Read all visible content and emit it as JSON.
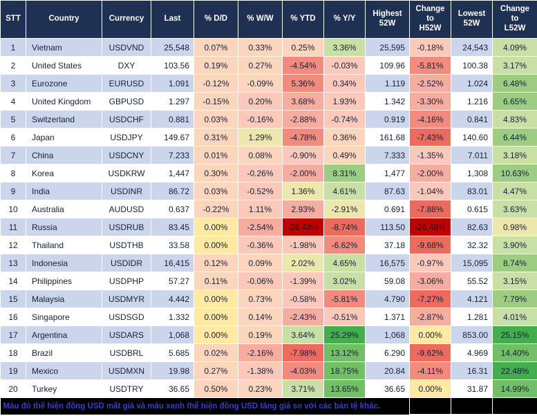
{
  "footer": {
    "note": "Màu đỏ thể hiện đồng USD mất giá và màu xanh thể hiện đồng USD tăng giá so với các bản tệ khác."
  },
  "colors": {
    "header_bg": "#1F3152",
    "row_alt_bg": "#CBD5EB",
    "row_bg": "#FFFFFF",
    "grid": "#FFFFFF",
    "footer_bg": "#000000",
    "note_text": "#3C3CCB",
    "scale_strong_red": "#C00000",
    "scale_med_red": "#EC6A5E",
    "scale_light_red": "#F7ACA0",
    "scale_pale_red": "#FAC9BA",
    "scale_neutral_cream": "#FFE9A3",
    "scale_pale_green": "#C8E0A5",
    "scale_med_green": "#72BF68",
    "scale_strong_green": "#44AE4E"
  },
  "chart_data": {
    "type": "table",
    "title": "FX rates vs USD — daily, weekly, YTD, yearly changes and 52-week ranges",
    "columns": [
      "STT",
      "Country",
      "Currency",
      "Last",
      "% D/D",
      "% W/W",
      "% YTD",
      "% Y/Y",
      "Highest\n52W",
      "Change\nto\nH52W",
      "Lowest\n52W",
      "Change\nto\nL52W"
    ],
    "rows": [
      {
        "stt": "1",
        "country": "Vietnam",
        "ccy": "USDVND",
        "last": "25,548",
        "dd": {
          "v": "0.07%",
          "c": "#FBD6BC"
        },
        "ww": {
          "v": "0.33%",
          "c": "#FBD6BC"
        },
        "ytd": {
          "v": "0.25%",
          "c": "#FBD6BC"
        },
        "yy": {
          "v": "3.36%",
          "c": "#C8E0A5"
        },
        "high": "25,595",
        "chgh": {
          "v": "-0.18%",
          "c": "#FAC9BA"
        },
        "low": "24,543",
        "chgl": {
          "v": "4.09%",
          "c": "#C8E0A5"
        }
      },
      {
        "stt": "2",
        "country": "United States",
        "ccy": "DXY",
        "last": "103.56",
        "dd": {
          "v": "0.19%",
          "c": "#FBD6BC"
        },
        "ww": {
          "v": "0.27%",
          "c": "#FBD6BC"
        },
        "ytd": {
          "v": "-4.54%",
          "c": "#F28A7E"
        },
        "yy": {
          "v": "-0.03%",
          "c": "#FAC9BA"
        },
        "high": "109.96",
        "chgh": {
          "v": "-5.81%",
          "c": "#F28A7E"
        },
        "low": "100.38",
        "chgl": {
          "v": "3.17%",
          "c": "#C8E0A5"
        }
      },
      {
        "stt": "3",
        "country": "Eurozone",
        "ccy": "EURUSD",
        "last": "1.091",
        "dd": {
          "v": "-0.12%",
          "c": "#FBD6BC"
        },
        "ww": {
          "v": "-0.09%",
          "c": "#FBD6BC"
        },
        "ytd": {
          "v": "5.36%",
          "c": "#F28A7E"
        },
        "yy": {
          "v": "0.34%",
          "c": "#FAC9BA"
        },
        "high": "1.119",
        "chgh": {
          "v": "-2.52%",
          "c": "#F7ACA0"
        },
        "low": "1.024",
        "chgl": {
          "v": "6.48%",
          "c": "#9CCD82"
        }
      },
      {
        "stt": "4",
        "country": "United Kingdom",
        "ccy": "GBPUSD",
        "last": "1.297",
        "dd": {
          "v": "-0.15%",
          "c": "#FBD6BC"
        },
        "ww": {
          "v": "0.20%",
          "c": "#FAC9BA"
        },
        "ytd": {
          "v": "3.68%",
          "c": "#F7ACA0"
        },
        "yy": {
          "v": "1.93%",
          "c": "#FAC9BA"
        },
        "high": "1.342",
        "chgh": {
          "v": "-3.30%",
          "c": "#F7ACA0"
        },
        "low": "1.216",
        "chgl": {
          "v": "6.65%",
          "c": "#9CCD82"
        }
      },
      {
        "stt": "5",
        "country": "Switzerland",
        "ccy": "USDCHF",
        "last": "0.881",
        "dd": {
          "v": "0.03%",
          "c": "#FBD6BC"
        },
        "ww": {
          "v": "-0.16%",
          "c": "#FAC9BA"
        },
        "ytd": {
          "v": "-2.88%",
          "c": "#F7ACA0"
        },
        "yy": {
          "v": "-0.74%",
          "c": "#FAC9BA"
        },
        "high": "0.919",
        "chgh": {
          "v": "-4.16%",
          "c": "#F28A7E"
        },
        "low": "0.841",
        "chgl": {
          "v": "4.83%",
          "c": "#C8E0A5"
        }
      },
      {
        "stt": "6",
        "country": "Japan",
        "ccy": "USDJPY",
        "last": "149.67",
        "dd": {
          "v": "0.31%",
          "c": "#FBD6BC"
        },
        "ww": {
          "v": "1.29%",
          "c": "#EEE7AC"
        },
        "ytd": {
          "v": "-4.78%",
          "c": "#F28A7E"
        },
        "yy": {
          "v": "0.36%",
          "c": "#FBD6BC"
        },
        "high": "161.68",
        "chgh": {
          "v": "-7.43%",
          "c": "#EC6A5E"
        },
        "low": "140.60",
        "chgl": {
          "v": "6.44%",
          "c": "#9CCD82"
        }
      },
      {
        "stt": "7",
        "country": "China",
        "ccy": "USDCNY",
        "last": "7.233",
        "dd": {
          "v": "0.01%",
          "c": "#FBD6BC"
        },
        "ww": {
          "v": "0.08%",
          "c": "#FBD6BC"
        },
        "ytd": {
          "v": "-0.90%",
          "c": "#FAC9BA"
        },
        "yy": {
          "v": "0.49%",
          "c": "#FBD6BC"
        },
        "high": "7.333",
        "chgh": {
          "v": "-1.35%",
          "c": "#FAC9BA"
        },
        "low": "7.011",
        "chgl": {
          "v": "3.18%",
          "c": "#C8E0A5"
        }
      },
      {
        "stt": "8",
        "country": "Korea",
        "ccy": "USDKRW",
        "last": "1,447",
        "dd": {
          "v": "0.30%",
          "c": "#FBD6BC"
        },
        "ww": {
          "v": "-0.26%",
          "c": "#FAC9BA"
        },
        "ytd": {
          "v": "-2.00%",
          "c": "#F7ACA0"
        },
        "yy": {
          "v": "8.31%",
          "c": "#9CCD82"
        },
        "high": "1,477",
        "chgh": {
          "v": "-2.00%",
          "c": "#F7ACA0"
        },
        "low": "1,308",
        "chgl": {
          "v": "10.63%",
          "c": "#9CCD82"
        }
      },
      {
        "stt": "9",
        "country": "India",
        "ccy": "USDINR",
        "last": "86.72",
        "dd": {
          "v": "0.03%",
          "c": "#FBD6BC"
        },
        "ww": {
          "v": "-0.52%",
          "c": "#FAC9BA"
        },
        "ytd": {
          "v": "1.36%",
          "c": "#EEE7AC"
        },
        "yy": {
          "v": "4.61%",
          "c": "#C8E0A5"
        },
        "high": "87.63",
        "chgh": {
          "v": "-1.04%",
          "c": "#FAC9BA"
        },
        "low": "83.01",
        "chgl": {
          "v": "4.47%",
          "c": "#C8E0A5"
        }
      },
      {
        "stt": "10",
        "country": "Australia",
        "ccy": "AUDUSD",
        "last": "0.637",
        "dd": {
          "v": "-0.22%",
          "c": "#FBD6BC"
        },
        "ww": {
          "v": "1.11%",
          "c": "#FAC9BA"
        },
        "ytd": {
          "v": "2.93%",
          "c": "#F7ACA0"
        },
        "yy": {
          "v": "-2.91%",
          "c": "#EEE7AC"
        },
        "high": "0.691",
        "chgh": {
          "v": "-7.88%",
          "c": "#EC6A5E"
        },
        "low": "0.615",
        "chgl": {
          "v": "3.63%",
          "c": "#C8E0A5"
        }
      },
      {
        "stt": "11",
        "country": "Russia",
        "ccy": "USDRUB",
        "last": "83.45",
        "dd": {
          "v": "0.00%",
          "c": "#FFE9A3"
        },
        "ww": {
          "v": "-2.54%",
          "c": "#F7ACA0"
        },
        "ytd": {
          "v": "-26.48%",
          "c": "#C00000",
          "f": "#2B0000"
        },
        "yy": {
          "v": "-8.74%",
          "c": "#EC6A5E"
        },
        "high": "113.50",
        "chgh": {
          "v": "-26.48%",
          "c": "#C00000",
          "f": "#2B0000"
        },
        "low": "82.63",
        "chgl": {
          "v": "0.98%",
          "c": "#EEE7AC"
        }
      },
      {
        "stt": "12",
        "country": "Thailand",
        "ccy": "USDTHB",
        "last": "33.58",
        "dd": {
          "v": "0.00%",
          "c": "#FFE9A3"
        },
        "ww": {
          "v": "-0.36%",
          "c": "#FAC9BA"
        },
        "ytd": {
          "v": "-1.98%",
          "c": "#FAC9BA"
        },
        "yy": {
          "v": "-6.62%",
          "c": "#F28A7E"
        },
        "high": "37.18",
        "chgh": {
          "v": "-9.68%",
          "c": "#EC6A5E"
        },
        "low": "32.32",
        "chgl": {
          "v": "3.90%",
          "c": "#C8E0A5"
        }
      },
      {
        "stt": "13",
        "country": "Indonesia",
        "ccy": "USDIDR",
        "last": "16,415",
        "dd": {
          "v": "0.12%",
          "c": "#FBD6BC"
        },
        "ww": {
          "v": "0.09%",
          "c": "#FBD6BC"
        },
        "ytd": {
          "v": "2.02%",
          "c": "#EEE7AC"
        },
        "yy": {
          "v": "4.65%",
          "c": "#C8E0A5"
        },
        "high": "16,575",
        "chgh": {
          "v": "-0.97%",
          "c": "#FAC9BA"
        },
        "low": "15,095",
        "chgl": {
          "v": "8.74%",
          "c": "#9CCD82"
        }
      },
      {
        "stt": "14",
        "country": "Philippines",
        "ccy": "USDPHP",
        "last": "57.27",
        "dd": {
          "v": "0.11%",
          "c": "#FBD6BC"
        },
        "ww": {
          "v": "-0.06%",
          "c": "#FAC9BA"
        },
        "ytd": {
          "v": "-1.39%",
          "c": "#FAC9BA"
        },
        "yy": {
          "v": "3.02%",
          "c": "#C8E0A5"
        },
        "high": "59.08",
        "chgh": {
          "v": "-3.06%",
          "c": "#F7ACA0"
        },
        "low": "55.52",
        "chgl": {
          "v": "3.15%",
          "c": "#C8E0A5"
        }
      },
      {
        "stt": "15",
        "country": "Malaysia",
        "ccy": "USDMYR",
        "last": "4.442",
        "dd": {
          "v": "0.00%",
          "c": "#FFE9A3"
        },
        "ww": {
          "v": "0.73%",
          "c": "#FBD6BC"
        },
        "ytd": {
          "v": "-0.58%",
          "c": "#FAC9BA"
        },
        "yy": {
          "v": "-5.81%",
          "c": "#F28A7E"
        },
        "high": "4.790",
        "chgh": {
          "v": "-7.27%",
          "c": "#EC6A5E"
        },
        "low": "4.121",
        "chgl": {
          "v": "7.79%",
          "c": "#9CCD82"
        }
      },
      {
        "stt": "16",
        "country": "Singapore",
        "ccy": "USDSGD",
        "last": "1.332",
        "dd": {
          "v": "0.00%",
          "c": "#FFE9A3"
        },
        "ww": {
          "v": "0.14%",
          "c": "#FBD6BC"
        },
        "ytd": {
          "v": "-2.43%",
          "c": "#F7ACA0"
        },
        "yy": {
          "v": "-0.51%",
          "c": "#FAC9BA"
        },
        "high": "1.371",
        "chgh": {
          "v": "-2.87%",
          "c": "#F7ACA0"
        },
        "low": "1.281",
        "chgl": {
          "v": "4.01%",
          "c": "#C8E0A5"
        }
      },
      {
        "stt": "17",
        "country": "Argentina",
        "ccy": "USDARS",
        "last": "1,068",
        "dd": {
          "v": "0.00%",
          "c": "#FFE9A3"
        },
        "ww": {
          "v": "0.19%",
          "c": "#FBD6BC"
        },
        "ytd": {
          "v": "3.64%",
          "c": "#C8E0A5"
        },
        "yy": {
          "v": "25.29%",
          "c": "#44AE4E"
        },
        "high": "1,068",
        "chgh": {
          "v": "0.00%",
          "c": "#FFE9A3"
        },
        "low": "853.00",
        "chgl": {
          "v": "25.15%",
          "c": "#44AE4E"
        }
      },
      {
        "stt": "18",
        "country": "Brazil",
        "ccy": "USDBRL",
        "last": "5.685",
        "dd": {
          "v": "0.02%",
          "c": "#FBD6BC"
        },
        "ww": {
          "v": "-2.16%",
          "c": "#F7ACA0"
        },
        "ytd": {
          "v": "-7.98%",
          "c": "#EC6A5E"
        },
        "yy": {
          "v": "13.12%",
          "c": "#72BF68"
        },
        "high": "6.290",
        "chgh": {
          "v": "-9.62%",
          "c": "#EC6A5E"
        },
        "low": "4.969",
        "chgl": {
          "v": "14.40%",
          "c": "#72BF68"
        }
      },
      {
        "stt": "19",
        "country": "Mexico",
        "ccy": "USDMXN",
        "last": "19.98",
        "dd": {
          "v": "0.27%",
          "c": "#FBD6BC"
        },
        "ww": {
          "v": "-1.38%",
          "c": "#FAC9BA"
        },
        "ytd": {
          "v": "-4.03%",
          "c": "#F28A7E"
        },
        "yy": {
          "v": "18.75%",
          "c": "#72BF68"
        },
        "high": "20.84",
        "chgh": {
          "v": "-4.11%",
          "c": "#F28A7E"
        },
        "low": "16.31",
        "chgl": {
          "v": "22.48%",
          "c": "#44AE4E"
        }
      },
      {
        "stt": "20",
        "country": "Turkey",
        "ccy": "USDTRY",
        "last": "36.65",
        "dd": {
          "v": "0.50%",
          "c": "#FBD6BC"
        },
        "ww": {
          "v": "0.23%",
          "c": "#FBD6BC"
        },
        "ytd": {
          "v": "3.71%",
          "c": "#C8E0A5"
        },
        "yy": {
          "v": "13.65%",
          "c": "#72BF68"
        },
        "high": "36.65",
        "chgh": {
          "v": "0.00%",
          "c": "#FFE9A3"
        },
        "low": "31.87",
        "chgl": {
          "v": "14.99%",
          "c": "#72BF68"
        }
      }
    ]
  }
}
